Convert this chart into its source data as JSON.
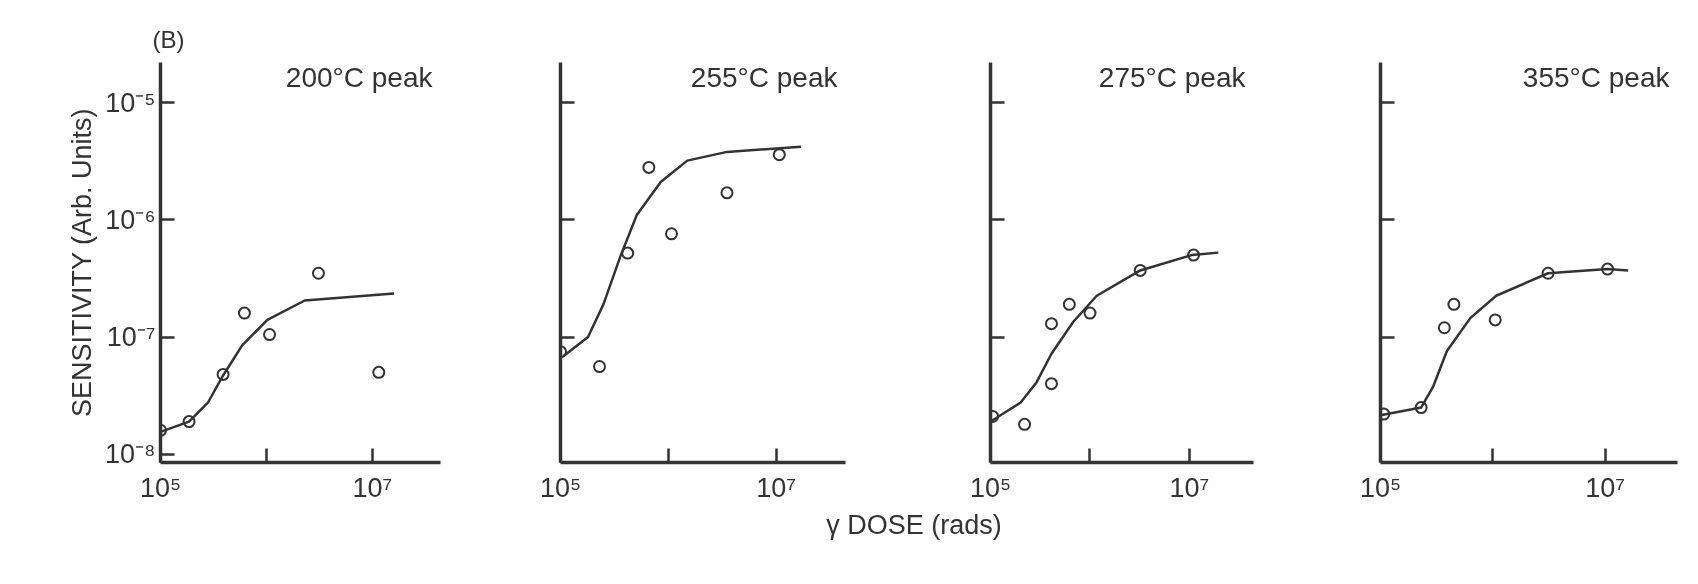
{
  "chart_data": [
    {
      "type": "scatter",
      "title": "200°C peak",
      "ylabel": "SENSITIVITY (Arb. Units)",
      "annotations": [
        "(B)"
      ],
      "grid": false,
      "xlim": [
        100000,
        44000000
      ],
      "ylim": [
        8.5e-09,
        2.2e-05
      ],
      "log": "xy",
      "xticks": [
        {
          "value": 100000,
          "label": "10⁵"
        },
        {
          "value": 1000000,
          "label": null
        },
        {
          "value": 10000000,
          "label": "10⁷"
        }
      ],
      "yticks": [
        {
          "value": 1e-08,
          "label": "10⁻⁸"
        },
        {
          "value": 1e-07,
          "label": "10⁻⁷"
        },
        {
          "value": 1e-06,
          "label": "10⁻⁶"
        },
        {
          "value": 1e-05,
          "label": "10⁻⁵"
        }
      ],
      "series": [
        {
          "type": "scatter",
          "marker": "circle",
          "color": "#333333",
          "x": [
            100000,
            186000,
            390000,
            620000,
            1070000,
            3100000,
            11500000
          ],
          "values": [
            1.6e-08,
            1.9e-08,
            4.8e-08,
            1.6e-07,
            1.05e-07,
            3.5e-07,
            5e-08
          ]
        },
        {
          "type": "line",
          "color": "#333333",
          "x": [
            100000,
            186000,
            280000,
            390000,
            590000,
            1020000,
            2300000,
            16000000
          ],
          "values": [
            1.55e-08,
            1.9e-08,
            2.75e-08,
            4.7e-08,
            8.5e-08,
            1.4e-07,
            2.05e-07,
            2.35e-07
          ]
        }
      ]
    },
    {
      "type": "scatter",
      "title": "255°C peak",
      "xlabel": "γ DOSE (rads)",
      "grid": false,
      "xlim": [
        100000,
        44000000
      ],
      "ylim": [
        8.5e-09,
        2.2e-05
      ],
      "log": "xy",
      "tick_labels": "x",
      "xticks": [
        {
          "value": 100000,
          "label": "10⁵"
        },
        {
          "value": 1000000,
          "label": null
        },
        {
          "value": 10000000,
          "label": "10⁷"
        }
      ],
      "yticks": [
        1e-07,
        1e-06,
        1e-05
      ],
      "series": [
        {
          "type": "scatter",
          "marker": "circle",
          "color": "#333333",
          "x": [
            100000,
            230000,
            420000,
            660000,
            1070000,
            3500000,
            10700000
          ],
          "values": [
            7.5e-08,
            5.6e-08,
            5.2e-07,
            2.8e-06,
            7.6e-07,
            1.7e-06,
            3.6e-06
          ]
        },
        {
          "type": "line",
          "color": "#333333",
          "x": [
            107000,
            180000,
            250000,
            360000,
            510000,
            850000,
            1500000,
            3500000,
            17000000
          ],
          "values": [
            6.9e-08,
            1e-07,
            1.9e-07,
            4.9e-07,
            1.1e-06,
            2.1e-06,
            3.2e-06,
            3.8e-06,
            4.2e-06
          ]
        }
      ]
    },
    {
      "type": "scatter",
      "title": "275°C peak",
      "grid": false,
      "xlim": [
        100000,
        44000000
      ],
      "ylim": [
        8.5e-09,
        2.2e-05
      ],
      "log": "xy",
      "tick_labels": "x",
      "xticks": [
        {
          "value": 100000,
          "label": "10⁵"
        },
        {
          "value": 1000000,
          "label": null
        },
        {
          "value": 10000000,
          "label": "10⁷"
        }
      ],
      "yticks": [
        1e-07,
        1e-06,
        1e-05
      ],
      "series": [
        {
          "type": "scatter",
          "marker": "circle",
          "color": "#333333",
          "x": [
            105000,
            220000,
            410000,
            410000,
            620000,
            1000000,
            3200000,
            11000000
          ],
          "values": [
            2.1e-08,
            1.8e-08,
            4e-08,
            1.3e-07,
            1.9e-07,
            1.6e-07,
            3.7e-07,
            5e-07
          ]
        },
        {
          "type": "line",
          "color": "#333333",
          "x": [
            100000,
            200000,
            290000,
            410000,
            680000,
            1170000,
            3200000,
            10500000,
            19500000
          ],
          "values": [
            1.9e-08,
            2.75e-08,
            4.1e-08,
            7.2e-08,
            1.35e-07,
            2.25e-07,
            3.7e-07,
            5e-07,
            5.25e-07
          ]
        }
      ]
    },
    {
      "type": "scatter",
      "title": "355°C peak",
      "grid": false,
      "xlim": [
        100000,
        44000000
      ],
      "ylim": [
        8.5e-09,
        2.2e-05
      ],
      "log": "xy",
      "tick_labels": "x",
      "xticks": [
        {
          "value": 100000,
          "label": "10⁵"
        },
        {
          "value": 1000000,
          "label": null
        },
        {
          "value": 10000000,
          "label": "10⁷"
        }
      ],
      "yticks": [
        1e-07,
        1e-06,
        1e-05
      ],
      "series": [
        {
          "type": "scatter",
          "marker": "circle",
          "color": "#333333",
          "x": [
            107000,
            230000,
            370000,
            450000,
            1050000,
            3100000,
            10500000
          ],
          "values": [
            2.2e-08,
            2.5e-08,
            1.2e-07,
            1.9e-07,
            1.4e-07,
            3.5e-07,
            3.8e-07
          ]
        },
        {
          "type": "line",
          "color": "#333333",
          "x": [
            100000,
            230000,
            295000,
            390000,
            630000,
            1070000,
            3100000,
            10500000,
            16000000
          ],
          "values": [
            2.15e-08,
            2.5e-08,
            3.8e-08,
            7.6e-08,
            1.45e-07,
            2.25e-07,
            3.5e-07,
            3.8e-07,
            3.7e-07
          ]
        }
      ]
    }
  ]
}
